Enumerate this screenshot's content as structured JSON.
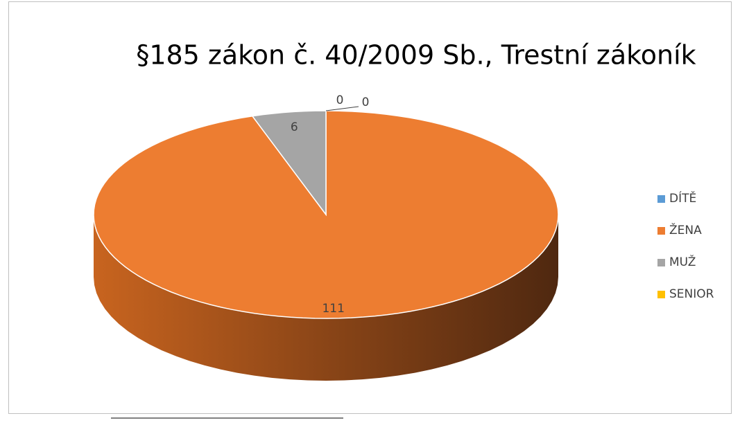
{
  "chart_data": {
    "type": "pie",
    "title": "§185 zákon č. 40/2009 Sb., Trestní zákoník",
    "categories": [
      "DÍTĚ",
      "ŽENA",
      "MUŽ",
      "SENIOR"
    ],
    "values": [
      0,
      111,
      6,
      0
    ],
    "colors": [
      "#5b9bd5",
      "#ed7d31",
      "#a5a5a5",
      "#ffc000"
    ],
    "legend": "right"
  }
}
